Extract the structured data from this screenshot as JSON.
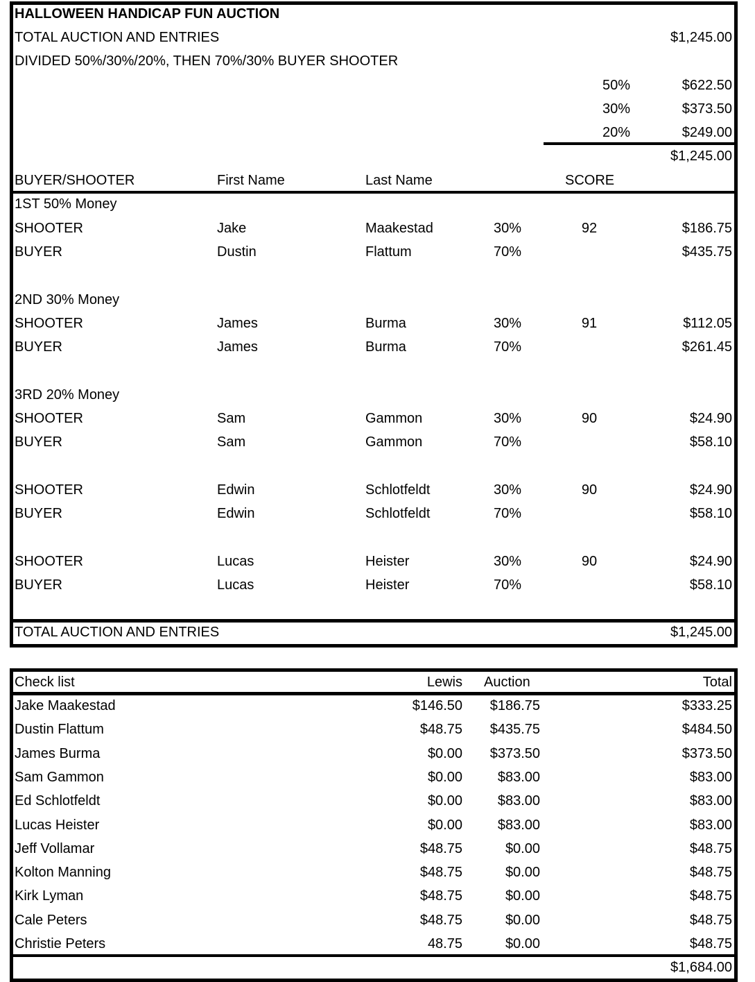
{
  "auction": {
    "title": "HALLOWEEN HANDICAP FUN AUCTION",
    "total_label": "TOTAL AUCTION AND ENTRIES",
    "total_value": "$1,245.00",
    "divided_text": "DIVIDED 50%/30%/20%, THEN 70%/30% BUYER SHOOTER",
    "splits": [
      {
        "pct": "50%",
        "amount": "$622.50"
      },
      {
        "pct": "30%",
        "amount": "$373.50"
      },
      {
        "pct": "20%",
        "amount": "$249.00"
      }
    ],
    "splits_sum": "$1,245.00",
    "headers": {
      "role": "BUYER/SHOOTER",
      "first": "First Name",
      "last": "Last Name",
      "score": "SCORE"
    },
    "sections": [
      {
        "title": "1ST 50% Money",
        "rows": [
          {
            "role": "SHOOTER",
            "first": "Jake",
            "last": "Maakestad",
            "pct": "30%",
            "score": "92",
            "amount": "$186.75"
          },
          {
            "role": "BUYER",
            "first": "Dustin",
            "last": "Flattum",
            "pct": "70%",
            "score": "",
            "amount": "$435.75"
          }
        ]
      },
      {
        "title": "2ND 30% Money",
        "rows": [
          {
            "role": "SHOOTER",
            "first": "James",
            "last": "Burma",
            "pct": "30%",
            "score": "91",
            "amount": "$112.05"
          },
          {
            "role": "BUYER",
            "first": "James",
            "last": "Burma",
            "pct": "70%",
            "score": "",
            "amount": "$261.45"
          }
        ]
      },
      {
        "title": "3RD 20% Money",
        "rows": [
          {
            "role": "SHOOTER",
            "first": "Sam",
            "last": "Gammon",
            "pct": "30%",
            "score": "90",
            "amount": "$24.90"
          },
          {
            "role": "BUYER",
            "first": "Sam",
            "last": "Gammon",
            "pct": "70%",
            "score": "",
            "amount": "$58.10"
          }
        ]
      },
      {
        "title": "",
        "rows": [
          {
            "role": "SHOOTER",
            "first": "Edwin",
            "last": "Schlotfeldt",
            "pct": "30%",
            "score": "90",
            "amount": "$24.90"
          },
          {
            "role": "BUYER",
            "first": "Edwin",
            "last": "Schlotfeldt",
            "pct": "70%",
            "score": "",
            "amount": "$58.10"
          }
        ]
      },
      {
        "title": "",
        "rows": [
          {
            "role": "SHOOTER",
            "first": "Lucas",
            "last": "Heister",
            "pct": "30%",
            "score": "90",
            "amount": "$24.90"
          },
          {
            "role": "BUYER",
            "first": "Lucas",
            "last": "Heister",
            "pct": "70%",
            "score": "",
            "amount": "$58.10"
          }
        ]
      }
    ],
    "footer_label": "TOTAL AUCTION AND ENTRIES",
    "footer_value": "$1,245.00"
  },
  "checklist": {
    "headers": {
      "name": "Check list",
      "lewis": "Lewis",
      "auction": "Auction",
      "total": "Total"
    },
    "rows": [
      {
        "name": "Jake Maakestad",
        "lewis": "$146.50",
        "auction": "$186.75",
        "total": "$333.25"
      },
      {
        "name": "Dustin Flattum",
        "lewis": "$48.75",
        "auction": "$435.75",
        "total": "$484.50"
      },
      {
        "name": "James Burma",
        "lewis": "$0.00",
        "auction": "$373.50",
        "total": "$373.50"
      },
      {
        "name": "Sam Gammon",
        "lewis": "$0.00",
        "auction": "$83.00",
        "total": "$83.00"
      },
      {
        "name": "Ed Schlotfeldt",
        "lewis": "$0.00",
        "auction": "$83.00",
        "total": "$83.00"
      },
      {
        "name": "Lucas Heister",
        "lewis": "$0.00",
        "auction": "$83.00",
        "total": "$83.00"
      },
      {
        "name": "Jeff Vollamar",
        "lewis": "$48.75",
        "auction": "$0.00",
        "total": "$48.75"
      },
      {
        "name": "Kolton Manning",
        "lewis": "$48.75",
        "auction": "$0.00",
        "total": "$48.75"
      },
      {
        "name": "Kirk Lyman",
        "lewis": "$48.75",
        "auction": "$0.00",
        "total": "$48.75"
      },
      {
        "name": "Cale Peters",
        "lewis": "$48.75",
        "auction": "$0.00",
        "total": "$48.75"
      },
      {
        "name": "Christie Peters",
        "lewis": "48.75",
        "auction": "$0.00",
        "total": "$48.75"
      }
    ],
    "grand_total": "$1,684.00"
  }
}
